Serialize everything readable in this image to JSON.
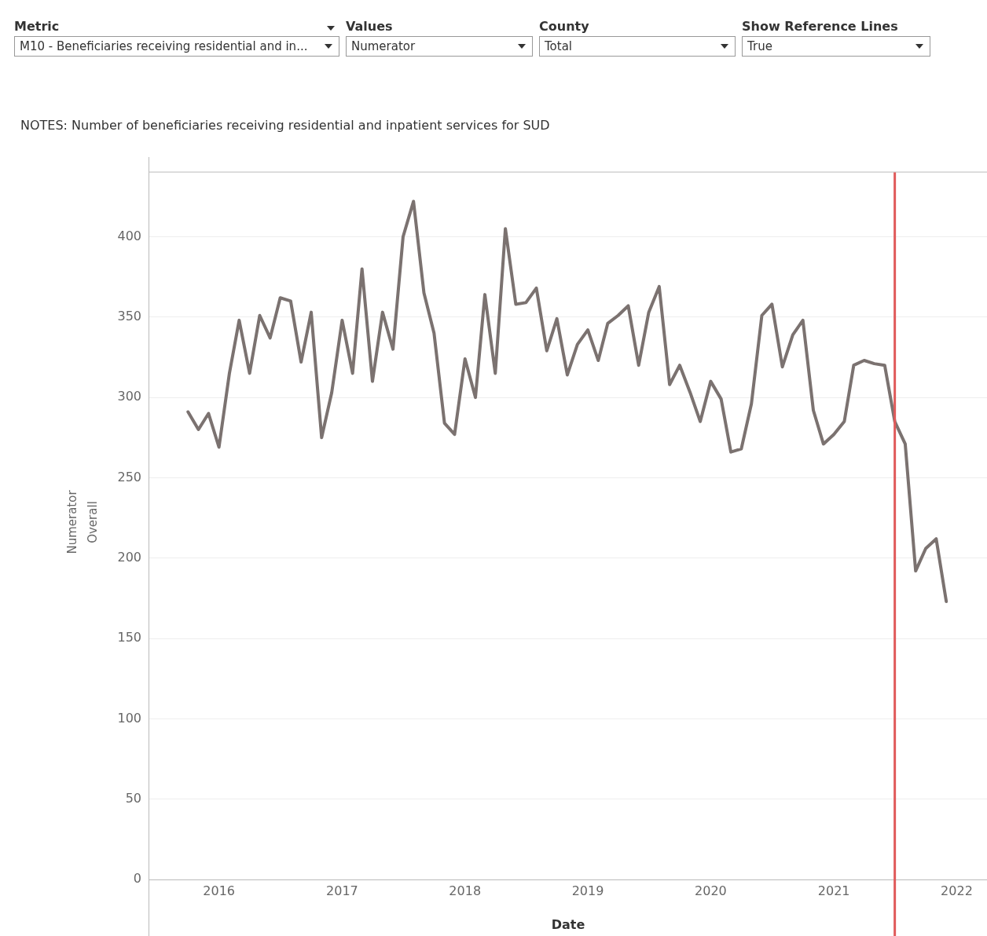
{
  "chart_data": {
    "type": "line",
    "subtitle": "NOTES: Number of beneficiaries receiving residential and inpatient services for SUD",
    "xlabel": "Date",
    "ylabel": "Numerator",
    "annotations": [
      "Metric",
      "M10 - Beneficiaries receiving residential and in...",
      "Values",
      "Numerator",
      "County",
      "Total",
      "Show Reference Lines",
      "True",
      "Overall"
    ],
    "x": [
      "2015-10",
      "2015-11",
      "2015-12",
      "2016-01",
      "2016-02",
      "2016-03",
      "2016-04",
      "2016-05",
      "2016-06",
      "2016-07",
      "2016-08",
      "2016-09",
      "2016-10",
      "2016-11",
      "2016-12",
      "2017-01",
      "2017-02",
      "2017-03",
      "2017-04",
      "2017-05",
      "2017-06",
      "2017-07",
      "2017-08",
      "2017-09",
      "2017-10",
      "2017-11",
      "2017-12",
      "2018-01",
      "2018-02",
      "2018-03",
      "2018-04",
      "2018-05",
      "2018-06",
      "2018-07",
      "2018-08",
      "2018-09",
      "2018-10",
      "2018-11",
      "2018-12",
      "2019-01",
      "2019-02",
      "2019-03",
      "2019-04",
      "2019-05",
      "2019-06",
      "2019-07",
      "2019-08",
      "2019-09",
      "2019-10",
      "2019-11",
      "2019-12",
      "2020-01",
      "2020-02",
      "2020-03",
      "2020-04",
      "2020-05",
      "2020-06",
      "2020-07",
      "2020-08",
      "2020-09",
      "2020-10",
      "2020-11",
      "2020-12",
      "2021-01",
      "2021-02",
      "2021-03",
      "2021-04",
      "2021-05",
      "2021-06",
      "2021-07",
      "2021-08",
      "2021-09",
      "2021-10",
      "2021-11",
      "2021-12"
    ],
    "series": [
      {
        "color": "#7b7270",
        "values": [
          291,
          280,
          290,
          269,
          315,
          348,
          315,
          351,
          337,
          362,
          360,
          322,
          353,
          275,
          303,
          348,
          315,
          380,
          310,
          353,
          330,
          400,
          422,
          365,
          340,
          284,
          277,
          324,
          300,
          364,
          315,
          405,
          358,
          359,
          368,
          329,
          349,
          314,
          333,
          342,
          323,
          346,
          351,
          357,
          320,
          353,
          369,
          308,
          320,
          303,
          285,
          310,
          299,
          266,
          268,
          296,
          351,
          358,
          319,
          339,
          348,
          292,
          271,
          277,
          285,
          320,
          323,
          321,
          320,
          285,
          271,
          192,
          206,
          212,
          173
        ]
      }
    ],
    "xlim": [
      "2015-06-08",
      "2022-04-01"
    ],
    "xticks": [
      {
        "value": "2016",
        "label": "2016"
      },
      {
        "value": "2017",
        "label": "2017"
      },
      {
        "value": "2018",
        "label": "2018"
      },
      {
        "value": "2019",
        "label": "2019"
      },
      {
        "value": "2020",
        "label": "2020"
      },
      {
        "value": "2021",
        "label": "2021"
      },
      {
        "value": "2022",
        "label": "2022"
      }
    ],
    "ylim": [
      0,
      440
    ],
    "yticks": [
      0,
      50,
      100,
      150,
      200,
      250,
      300,
      350,
      400
    ],
    "ref_lines": [
      {
        "axis": "x",
        "value": "2021-07",
        "color": "#e05a5a"
      }
    ],
    "grid": "y",
    "legend": false,
    "marker": "none",
    "line_style": "solid"
  }
}
